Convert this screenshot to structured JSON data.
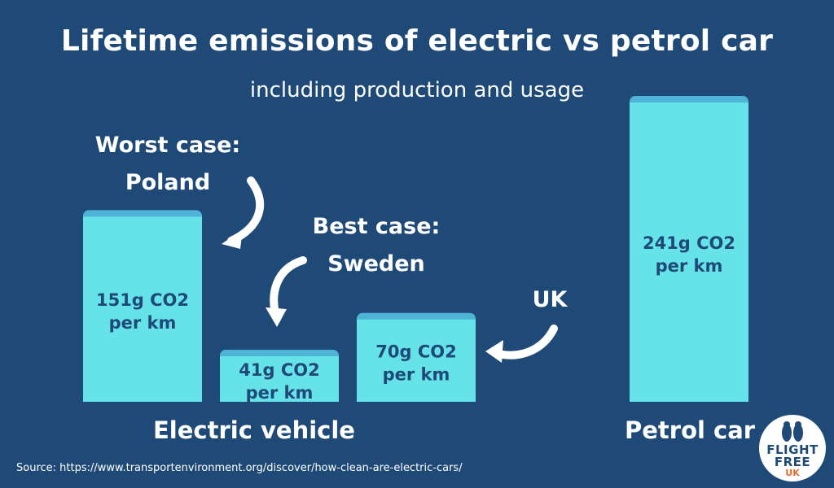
{
  "chart_data": {
    "type": "bar",
    "title": "Lifetime emissions of electric vs petrol car",
    "subtitle": "including production and usage",
    "unit": "g CO2 per km",
    "ylim": [
      0,
      250
    ],
    "bars": [
      {
        "value": 151,
        "label_line1": "151g CO2",
        "label_line2": "per km",
        "group": "ev"
      },
      {
        "value": 41,
        "label_line1": "41g CO2",
        "label_line2": "per km",
        "group": "ev"
      },
      {
        "value": 70,
        "label_line1": "70g CO2",
        "label_line2": "per km",
        "group": "ev"
      },
      {
        "value": 241,
        "label_line1": "241g CO2",
        "label_line2": "per km",
        "group": "petrol"
      }
    ],
    "categories": [
      "Electric vehicle",
      "Petrol car"
    ],
    "annotations": [
      {
        "line1": "Worst case:",
        "line2": "Poland"
      },
      {
        "line1": "Best case:",
        "line2": "Sweden"
      },
      {
        "line1": "UK",
        "line2": ""
      }
    ],
    "bar_color": "#66e3e9",
    "bar_top_color": "#4fb3d8",
    "background_color": "#1f4a78"
  },
  "source": "Source: https://www.transportenvironment.org/discover/how-clean-are-electric-cars/",
  "logo": {
    "line1": "FLIGHT",
    "line2": "FREE",
    "line3": "UK",
    "icon": "two-birds-icon"
  }
}
